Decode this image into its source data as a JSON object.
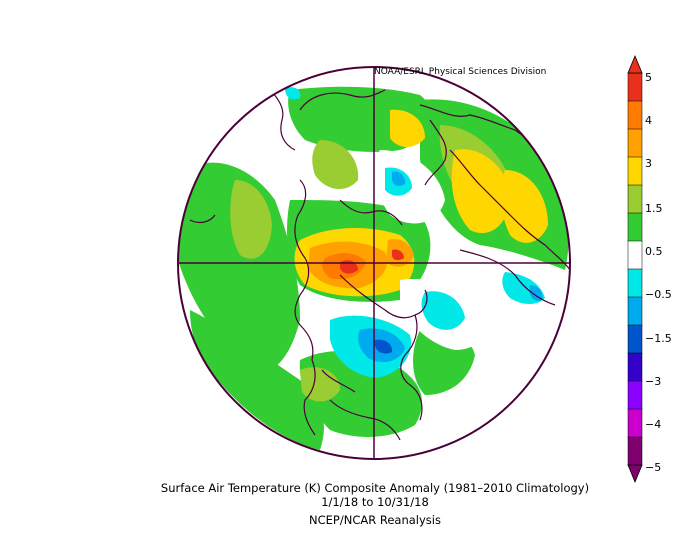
{
  "source_credit": "NOAA/ESRL Physical Sciences Division",
  "title": "Surface Air Temperature (K) Composite Anomaly (1981–2010 Climatology)",
  "date_range": "1/1/18  to 10/31/18",
  "dataset": "NCEP/NCAR Reanalysis",
  "colorbar": {
    "tick_labels": [
      "5",
      "4",
      "3",
      "1.5",
      "0.5",
      "−0.5",
      "−1.5",
      "−3",
      "−4",
      "−5"
    ],
    "colors": [
      "#e8301c",
      "#ff7a00",
      "#ffa100",
      "#ffd700",
      "#9acd32",
      "#33cc33",
      "#ffffff",
      "#00e8e8",
      "#00aaee",
      "#0055cc",
      "#3300cc",
      "#8b00ff",
      "#cc00cc",
      "#80006e"
    ]
  }
}
